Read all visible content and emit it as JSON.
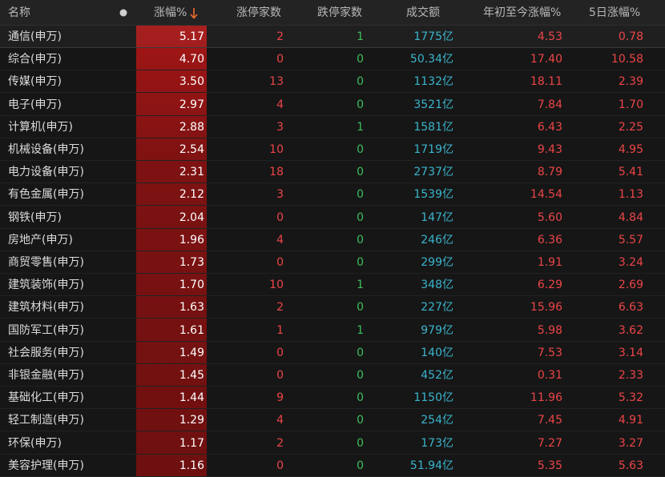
{
  "table": {
    "headers": [
      "名称",
      "涨幅%",
      "涨停家数",
      "跌停家数",
      "成交额",
      "年初至今涨幅%",
      "5日涨幅%"
    ],
    "rows": [
      [
        "通信(申万)",
        "5.17",
        "2",
        "1",
        "1775亿",
        "4.53",
        "0.78"
      ],
      [
        "综合(申万)",
        "4.70",
        "0",
        "0",
        "50.34亿",
        "17.40",
        "10.58"
      ],
      [
        "传媒(申万)",
        "3.50",
        "13",
        "0",
        "1132亿",
        "18.11",
        "2.39"
      ],
      [
        "电子(申万)",
        "2.97",
        "4",
        "0",
        "3521亿",
        "7.84",
        "1.70"
      ],
      [
        "计算机(申万)",
        "2.88",
        "3",
        "1",
        "1581亿",
        "6.43",
        "2.25"
      ],
      [
        "机械设备(申万)",
        "2.54",
        "10",
        "0",
        "1719亿",
        "9.43",
        "4.95"
      ],
      [
        "电力设备(申万)",
        "2.31",
        "18",
        "0",
        "2737亿",
        "8.79",
        "5.41"
      ],
      [
        "有色金属(申万)",
        "2.12",
        "3",
        "0",
        "1539亿",
        "14.54",
        "1.13"
      ],
      [
        "钢铁(申万)",
        "2.04",
        "0",
        "0",
        "147亿",
        "5.60",
        "4.84"
      ],
      [
        "房地产(申万)",
        "1.96",
        "4",
        "0",
        "246亿",
        "6.36",
        "5.57"
      ],
      [
        "商贸零售(申万)",
        "1.73",
        "0",
        "0",
        "299亿",
        "1.91",
        "3.24"
      ],
      [
        "建筑装饰(申万)",
        "1.70",
        "10",
        "1",
        "348亿",
        "6.29",
        "2.69"
      ],
      [
        "建筑材料(申万)",
        "1.63",
        "2",
        "0",
        "227亿",
        "15.96",
        "6.63"
      ],
      [
        "国防军工(申万)",
        "1.61",
        "1",
        "1",
        "979亿",
        "5.98",
        "3.62"
      ],
      [
        "社会服务(申万)",
        "1.49",
        "0",
        "0",
        "140亿",
        "7.53",
        "3.14"
      ],
      [
        "非银金融(申万)",
        "1.45",
        "0",
        "0",
        "452亿",
        "0.31",
        "2.33"
      ],
      [
        "基础化工(申万)",
        "1.44",
        "9",
        "0",
        "1150亿",
        "11.96",
        "5.32"
      ],
      [
        "轻工制造(申万)",
        "1.29",
        "4",
        "0",
        "254亿",
        "7.45",
        "4.91"
      ],
      [
        "环保(申万)",
        "1.17",
        "2",
        "0",
        "173亿",
        "7.27",
        "3.27"
      ],
      [
        "美容护理(申万)",
        "1.16",
        "0",
        "0",
        "51.94亿",
        "5.35",
        "5.63"
      ]
    ]
  }
}
